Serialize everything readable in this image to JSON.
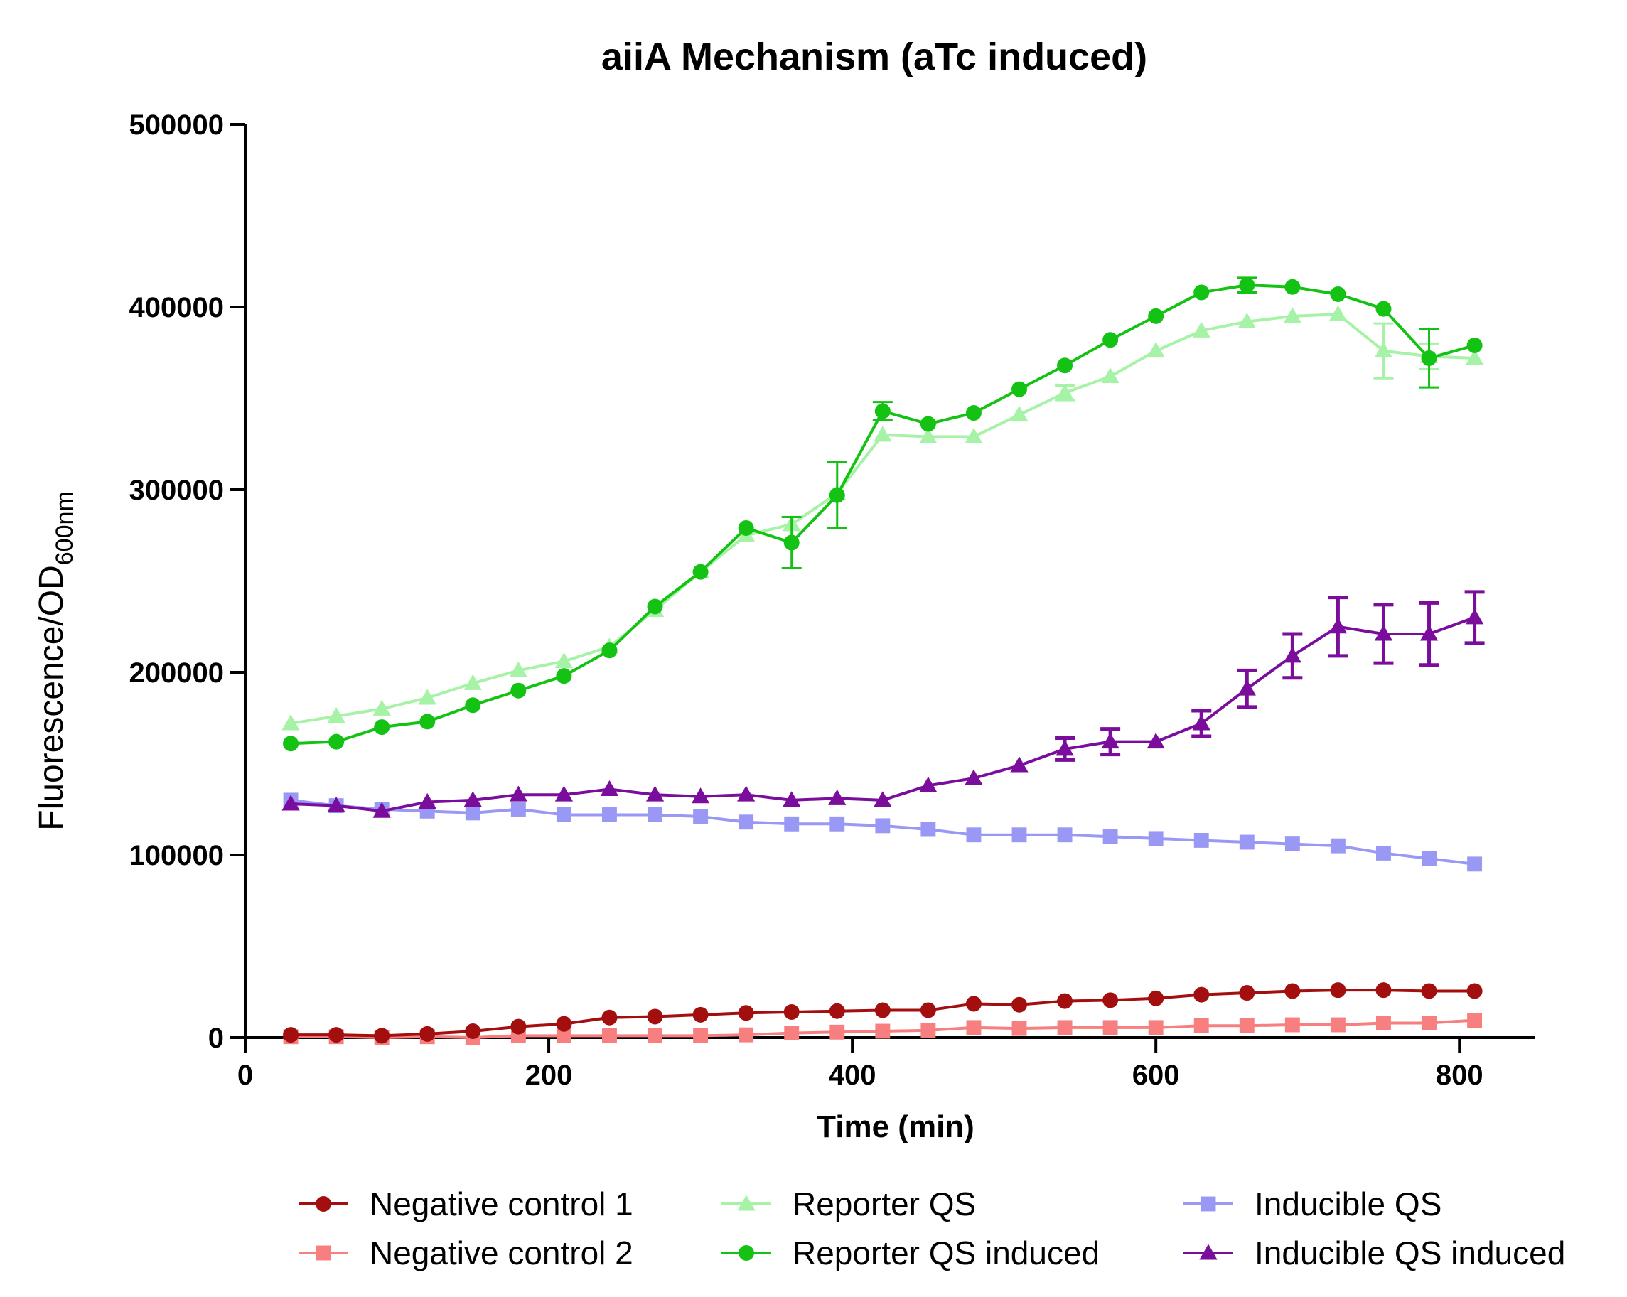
{
  "chart_data": {
    "type": "line",
    "title": "aiiA Mechanism (aTc induced)",
    "xlabel": "Time (min)",
    "ylabel_main": "Fluorescence/OD",
    "ylabel_sub": "600nm",
    "xlim": [
      0,
      850
    ],
    "ylim": [
      0,
      500000
    ],
    "xticks": [
      0,
      200,
      400,
      600,
      800
    ],
    "xtick_labels": [
      "0",
      "200",
      "400",
      "600",
      "800"
    ],
    "yticks": [
      0,
      100000,
      200000,
      300000,
      400000,
      500000
    ],
    "ytick_labels": [
      "0",
      "100000",
      "200000",
      "300000",
      "400000",
      "500000"
    ],
    "grid": false,
    "legend_position": "bottom",
    "x": [
      30,
      60,
      90,
      120,
      150,
      180,
      210,
      240,
      270,
      300,
      330,
      360,
      390,
      420,
      450,
      480,
      510,
      540,
      570,
      600,
      630,
      660,
      690,
      720,
      750,
      780,
      810
    ],
    "series": [
      {
        "name": "Negative control 1",
        "color": "#a30f0f",
        "marker": "circle",
        "legend_slot": 0,
        "values": [
          1500,
          1500,
          1000,
          2000,
          3500,
          6000,
          7500,
          11000,
          11500,
          12500,
          13500,
          14000,
          14500,
          15000,
          15000,
          18500,
          18000,
          20000,
          20500,
          21500,
          23500,
          24500,
          25500,
          26000,
          26000,
          25500,
          25500
        ],
        "errors": [
          0,
          0,
          0,
          0,
          0,
          0,
          0,
          0,
          0,
          0,
          0,
          0,
          0,
          0,
          0,
          0,
          0,
          0,
          0,
          0,
          0,
          0,
          0,
          0,
          0,
          0,
          0
        ]
      },
      {
        "name": "Negative control 2",
        "color": "#f77f7f",
        "marker": "square",
        "legend_slot": 1,
        "values": [
          500,
          500,
          0,
          500,
          0,
          1000,
          1000,
          1000,
          1000,
          1000,
          1500,
          2500,
          3000,
          3500,
          4000,
          5500,
          5000,
          5500,
          5500,
          5500,
          6500,
          6500,
          7000,
          7000,
          8000,
          8000,
          9500
        ],
        "errors": [
          0,
          0,
          0,
          0,
          0,
          0,
          0,
          0,
          0,
          0,
          0,
          0,
          0,
          0,
          0,
          0,
          0,
          0,
          0,
          0,
          0,
          0,
          0,
          0,
          0,
          0,
          0
        ]
      },
      {
        "name": "Reporter QS",
        "color": "#a6f2a6",
        "marker": "triangle",
        "legend_slot": 2,
        "values": [
          172000,
          176000,
          180000,
          186000,
          194000,
          201000,
          206000,
          214000,
          234000,
          255000,
          275000,
          281000,
          298000,
          330000,
          329000,
          329000,
          341000,
          353000,
          362000,
          376000,
          387000,
          392000,
          395000,
          396000,
          376000,
          373000,
          372000
        ],
        "errors": [
          0,
          0,
          0,
          0,
          0,
          0,
          0,
          0,
          0,
          0,
          0,
          0,
          0,
          0,
          0,
          0,
          0,
          4000,
          0,
          0,
          0,
          0,
          0,
          0,
          15000,
          7000,
          0
        ]
      },
      {
        "name": "Reporter QS induced",
        "color": "#14c214",
        "marker": "circle",
        "legend_slot": 3,
        "values": [
          161000,
          162000,
          170000,
          173000,
          182000,
          190000,
          198000,
          212000,
          236000,
          255000,
          279000,
          271000,
          297000,
          343000,
          336000,
          342000,
          355000,
          368000,
          382000,
          395000,
          408000,
          412000,
          411000,
          407000,
          399000,
          372000,
          379000
        ],
        "errors": [
          0,
          0,
          0,
          0,
          0,
          0,
          0,
          0,
          0,
          0,
          0,
          14000,
          18000,
          5000,
          0,
          0,
          0,
          0,
          0,
          0,
          0,
          4000,
          0,
          0,
          0,
          16000,
          0
        ]
      },
      {
        "name": "Inducible QS",
        "color": "#9999f5",
        "marker": "square",
        "legend_slot": 4,
        "values": [
          130000,
          127000,
          125000,
          124000,
          123000,
          125000,
          122000,
          122000,
          122000,
          121000,
          118000,
          117000,
          117000,
          116000,
          114000,
          111000,
          111000,
          111000,
          110000,
          109000,
          108000,
          107000,
          106000,
          105000,
          101000,
          98000,
          95000
        ],
        "errors": [
          0,
          0,
          0,
          0,
          0,
          0,
          0,
          0,
          0,
          0,
          0,
          0,
          0,
          0,
          0,
          0,
          0,
          0,
          0,
          0,
          0,
          0,
          0,
          0,
          0,
          0,
          0
        ]
      },
      {
        "name": "Inducible QS induced",
        "color": "#7a0d9c",
        "marker": "triangle",
        "legend_slot": 5,
        "values": [
          128000,
          127000,
          124000,
          129000,
          130000,
          133000,
          133000,
          136000,
          133000,
          132000,
          133000,
          130000,
          131000,
          130000,
          138000,
          142000,
          149000,
          158000,
          162000,
          162000,
          172000,
          191000,
          209000,
          225000,
          221000,
          221000,
          230000
        ],
        "errors": [
          0,
          0,
          0,
          0,
          0,
          0,
          0,
          0,
          0,
          0,
          0,
          0,
          0,
          0,
          0,
          0,
          0,
          6000,
          7000,
          0,
          7000,
          10000,
          12000,
          16000,
          16000,
          17000,
          14000
        ]
      }
    ]
  }
}
